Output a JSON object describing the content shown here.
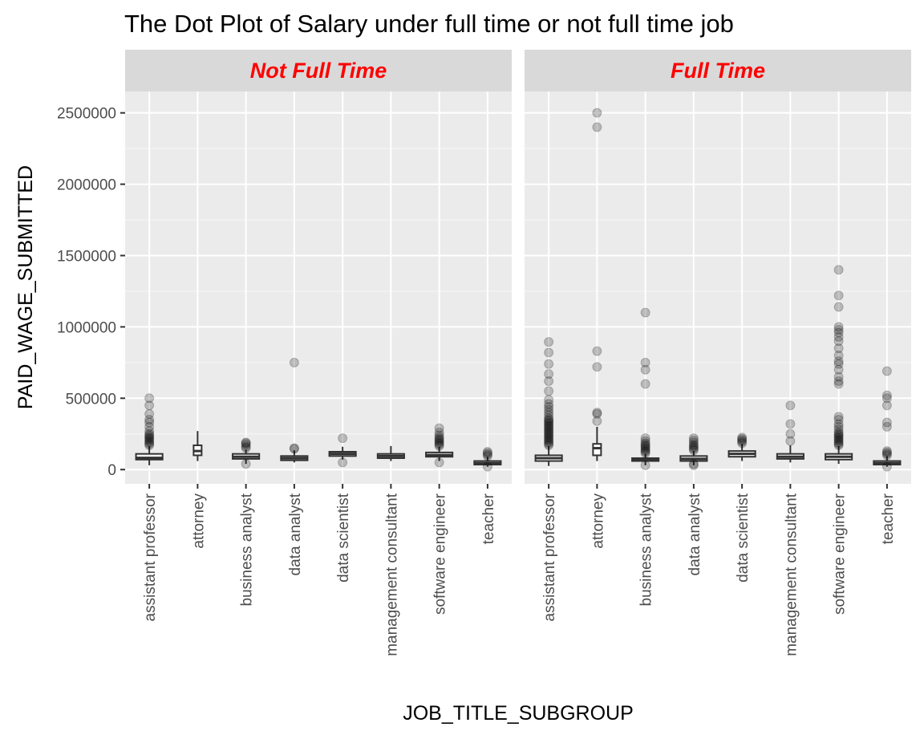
{
  "chart_data": {
    "type": "boxplot",
    "title": "The Dot Plot of Salary under full time or not full time job",
    "xlabel": "JOB_TITLE_SUBGROUP",
    "ylabel": "PAID_WAGE_SUBMITTED",
    "ylim": [
      -100000,
      2650000
    ],
    "y_ticks": [
      {
        "value": 0,
        "label": "0"
      },
      {
        "value": 500000,
        "label": "500000"
      },
      {
        "value": 1000000,
        "label": "1000000"
      },
      {
        "value": 1500000,
        "label": "1500000"
      },
      {
        "value": 2000000,
        "label": "2000000"
      },
      {
        "value": 2500000,
        "label": "2500000"
      }
    ],
    "categories": [
      "assistant professor",
      "attorney",
      "business analyst",
      "data analyst",
      "data scientist",
      "management consultant",
      "software engineer",
      "teacher"
    ],
    "grid": true,
    "strip_label_color": "#ff0000",
    "panels": [
      {
        "facet": "Not Full Time",
        "boxes": [
          {
            "category": "assistant professor",
            "whisker_low": 30000,
            "q1": 70000,
            "median": 82000,
            "q3": 110000,
            "whisker_high": 165000,
            "outliers": [
              170000,
              180000,
              190000,
              200000,
              210000,
              220000,
              230000,
              240000,
              250000,
              270000,
              300000,
              330000,
              350000,
              390000,
              450000,
              500000
            ]
          },
          {
            "category": "attorney",
            "whisker_low": 60000,
            "q1": 100000,
            "median": 130000,
            "q3": 170000,
            "whisker_high": 270000,
            "outliers": []
          },
          {
            "category": "business analyst",
            "whisker_low": 40000,
            "q1": 75000,
            "median": 90000,
            "q3": 110000,
            "whisker_high": 140000,
            "outliers": [
              40000,
              150000,
              160000,
              175000,
              185000,
              190000
            ]
          },
          {
            "category": "data analyst",
            "whisker_low": 50000,
            "q1": 65000,
            "median": 80000,
            "q3": 95000,
            "whisker_high": 135000,
            "outliers": [
              145000,
              150000,
              750000
            ]
          },
          {
            "category": "data scientist",
            "whisker_low": 70000,
            "q1": 95000,
            "median": 110000,
            "q3": 125000,
            "whisker_high": 160000,
            "outliers": [
              50000,
              220000
            ]
          },
          {
            "category": "management consultant",
            "whisker_low": 60000,
            "q1": 80000,
            "median": 95000,
            "q3": 110000,
            "whisker_high": 165000,
            "outliers": []
          },
          {
            "category": "software engineer",
            "whisker_low": 60000,
            "q1": 90000,
            "median": 102000,
            "q3": 120000,
            "whisker_high": 160000,
            "outliers": [
              50000,
              165000,
              175000,
              185000,
              195000,
              205000,
              215000,
              225000,
              240000,
              260000,
              290000
            ]
          },
          {
            "category": "teacher",
            "whisker_low": 20000,
            "q1": 35000,
            "median": 45000,
            "q3": 60000,
            "whisker_high": 90000,
            "outliers": [
              20000,
              95000,
              105000,
              115000,
              125000
            ]
          }
        ]
      },
      {
        "facet": "Full Time",
        "boxes": [
          {
            "category": "assistant professor",
            "whisker_low": 25000,
            "q1": 60000,
            "median": 80000,
            "q3": 100000,
            "whisker_high": 165000,
            "outliers": [
              170000,
              180000,
              190000,
              200000,
              210000,
              220000,
              230000,
              240000,
              250000,
              260000,
              270000,
              280000,
              290000,
              300000,
              310000,
              320000,
              330000,
              340000,
              350000,
              360000,
              380000,
              400000,
              420000,
              440000,
              460000,
              490000,
              550000,
              620000,
              670000,
              740000,
              820000,
              895000
            ]
          },
          {
            "category": "attorney",
            "whisker_low": 60000,
            "q1": 100000,
            "median": 150000,
            "q3": 180000,
            "whisker_high": 300000,
            "outliers": [
              340000,
              390000,
              400000,
              720000,
              830000,
              2400000,
              2500000
            ]
          },
          {
            "category": "business analyst",
            "whisker_low": 30000,
            "q1": 60000,
            "median": 70000,
            "q3": 80000,
            "whisker_high": 110000,
            "outliers": [
              30000,
              115000,
              125000,
              135000,
              145000,
              155000,
              165000,
              175000,
              185000,
              200000,
              220000,
              600000,
              700000,
              750000,
              1100000
            ]
          },
          {
            "category": "data analyst",
            "whisker_low": 30000,
            "q1": 60000,
            "median": 75000,
            "q3": 95000,
            "whisker_high": 130000,
            "outliers": [
              30000,
              40000,
              135000,
              145000,
              155000,
              165000,
              175000,
              190000,
              205000,
              220000
            ]
          },
          {
            "category": "data scientist",
            "whisker_low": 60000,
            "q1": 90000,
            "median": 110000,
            "q3": 130000,
            "whisker_high": 180000,
            "outliers": [
              185000,
              195000,
              205000,
              215000,
              225000
            ]
          },
          {
            "category": "management consultant",
            "whisker_low": 50000,
            "q1": 75000,
            "median": 90000,
            "q3": 110000,
            "whisker_high": 170000,
            "outliers": [
              200000,
              250000,
              320000,
              450000
            ]
          },
          {
            "category": "software engineer",
            "whisker_low": 40000,
            "q1": 70000,
            "median": 90000,
            "q3": 110000,
            "whisker_high": 165000,
            "outliers": [
              170000,
              180000,
              190000,
              200000,
              210000,
              220000,
              230000,
              240000,
              250000,
              260000,
              280000,
              300000,
              320000,
              350000,
              370000,
              600000,
              620000,
              650000,
              700000,
              740000,
              760000,
              800000,
              850000,
              900000,
              930000,
              960000,
              980000,
              1000000,
              1140000,
              1220000,
              1400000
            ]
          },
          {
            "category": "teacher",
            "whisker_low": 20000,
            "q1": 35000,
            "median": 45000,
            "q3": 60000,
            "whisker_high": 95000,
            "outliers": [
              20000,
              100000,
              110000,
              120000,
              130000,
              300000,
              330000,
              450000,
              500000,
              520000,
              690000
            ]
          }
        ]
      }
    ]
  }
}
